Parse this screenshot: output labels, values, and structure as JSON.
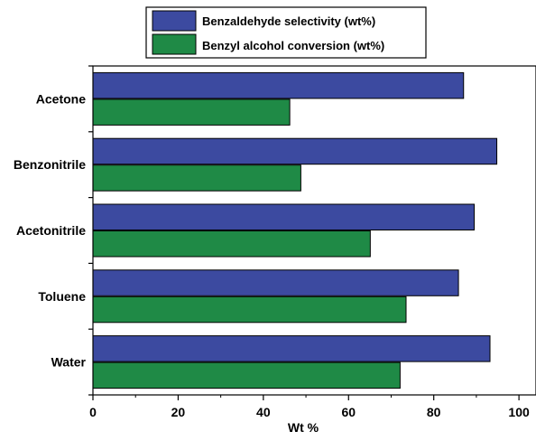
{
  "chart_data": {
    "type": "bar",
    "orientation": "horizontal",
    "categories": [
      "Acetone",
      "Benzonitrile",
      "Acetonitrile",
      "Toluene",
      "Water"
    ],
    "series": [
      {
        "name": "Benzaldehyde selectivity (wt%)",
        "color": "#3c4aa0",
        "values": [
          87,
          94.8,
          89.5,
          85.8,
          93.2
        ]
      },
      {
        "name": "Benzyl alcohol conversion (wt%)",
        "color": "#1f8a46",
        "values": [
          46.2,
          48.8,
          65.1,
          73.5,
          72.1
        ]
      }
    ],
    "xlabel": "Wt %",
    "ylabel": "",
    "xlim": [
      0,
      104
    ],
    "xticks": [
      "0",
      "20",
      "40",
      "60",
      "80",
      "100"
    ],
    "legend_position": "top",
    "grid": false
  }
}
